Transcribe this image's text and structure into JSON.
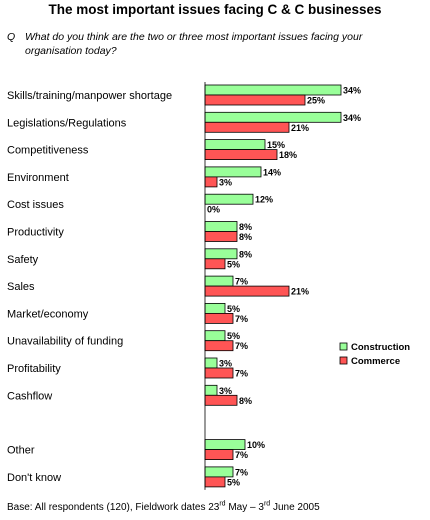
{
  "title": "The most important issues facing C & C businesses",
  "question": {
    "marker": "Q",
    "text": "What do you think are the two or three most important issues facing your organisation today?"
  },
  "footnote": {
    "prefix": "Base:  All respondents (120), Fieldwork dates 23",
    "sup1": "rd",
    "middle": " May – 3",
    "sup2": "rd",
    "suffix": " June 2005"
  },
  "chart_data": {
    "type": "bar",
    "orientation": "horizontal",
    "title": "The most important issues facing C & C businesses",
    "categories": [
      "Skills/training/manpower shortage",
      "Legislations/Regulations",
      "Competitiveness",
      "Environment",
      "Cost issues",
      "Productivity",
      "Safety",
      "Sales",
      "Market/economy",
      "Unavailability of funding",
      "Profitability",
      "Cashflow",
      "Other",
      "Don't know"
    ],
    "series": [
      {
        "name": "Construction",
        "color": "#99ff99",
        "values": [
          34,
          34,
          15,
          14,
          12,
          8,
          8,
          7,
          5,
          5,
          3,
          3,
          10,
          7
        ],
        "labels": [
          "34%",
          "34%",
          "15%",
          "14%",
          "12%",
          "8%",
          "8%",
          "7%",
          "5%",
          "5%",
          "3%",
          "3%",
          "10%",
          "7%"
        ]
      },
      {
        "name": "Commerce",
        "color": "#ff5555",
        "values": [
          25,
          21,
          18,
          3,
          0,
          8,
          5,
          21,
          7,
          7,
          7,
          8,
          7,
          5
        ],
        "labels": [
          "25%",
          "21%",
          "18%",
          "3%",
          "0%",
          "8%",
          "5%",
          "21%",
          "7%",
          "7%",
          "7%",
          "8%",
          "7%",
          "5%"
        ]
      }
    ],
    "value_unit": "%",
    "legend_position": "right"
  }
}
